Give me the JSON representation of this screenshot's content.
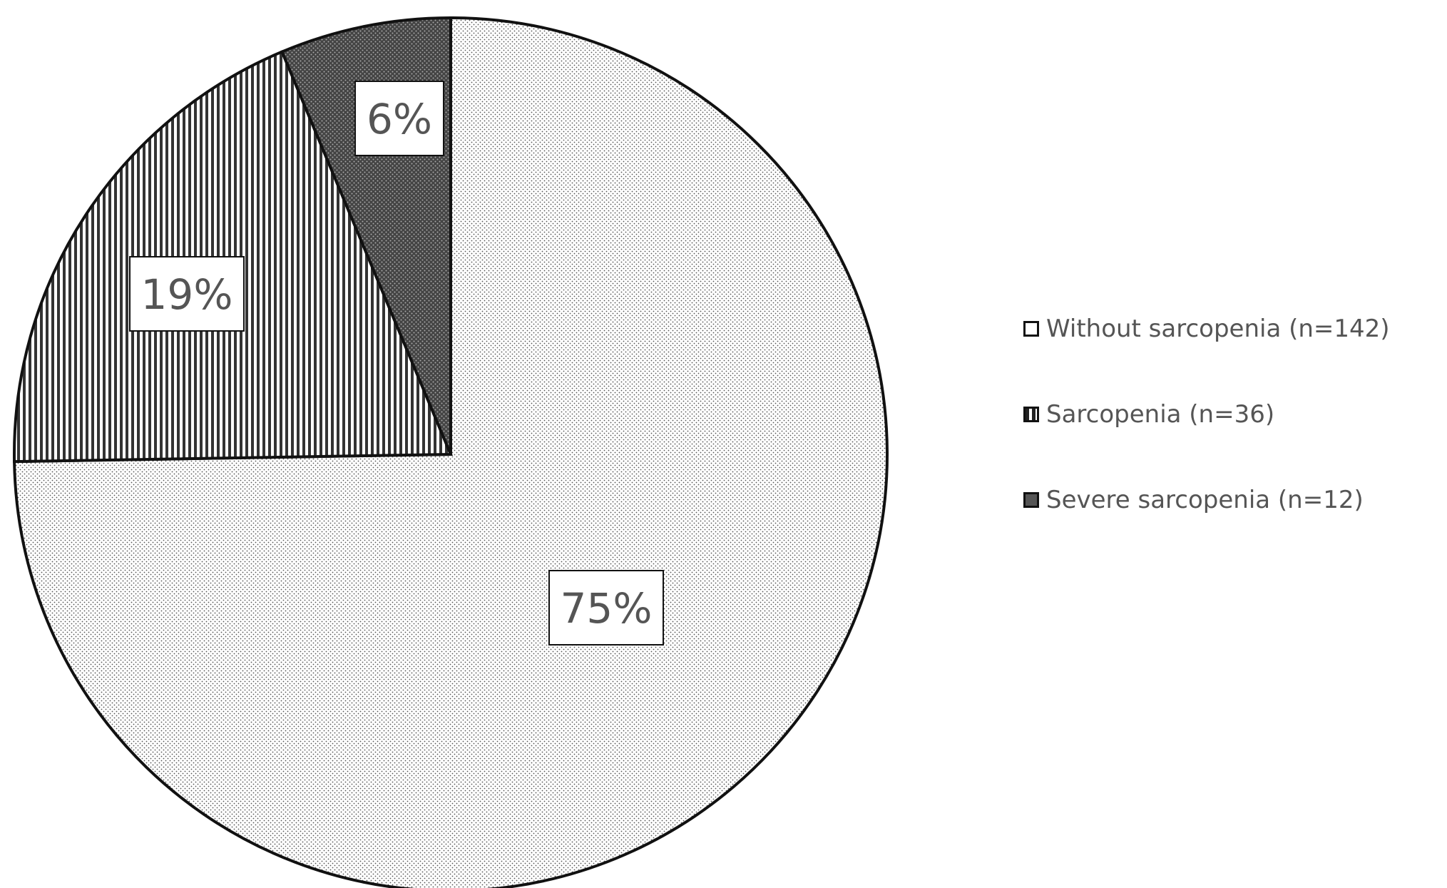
{
  "chart_data": {
    "type": "pie",
    "start_angle_deg": 0,
    "direction": "clockwise",
    "slices": [
      {
        "label": "Without sarcopenia (n=142)",
        "value": 142,
        "percent_label": "75%",
        "pattern": "fine-dots"
      },
      {
        "label": "Sarcopenia (n=36)",
        "value": 36,
        "percent_label": "19%",
        "pattern": "vertical-stripes"
      },
      {
        "label": "Severe sarcopenia (n=12)",
        "value": 12,
        "percent_label": "6%",
        "pattern": "dense-dots-dark"
      }
    ],
    "legend_position": "right",
    "colors": {
      "outline": "#111111",
      "label_text": "#555555",
      "background": "#ffffff"
    }
  }
}
